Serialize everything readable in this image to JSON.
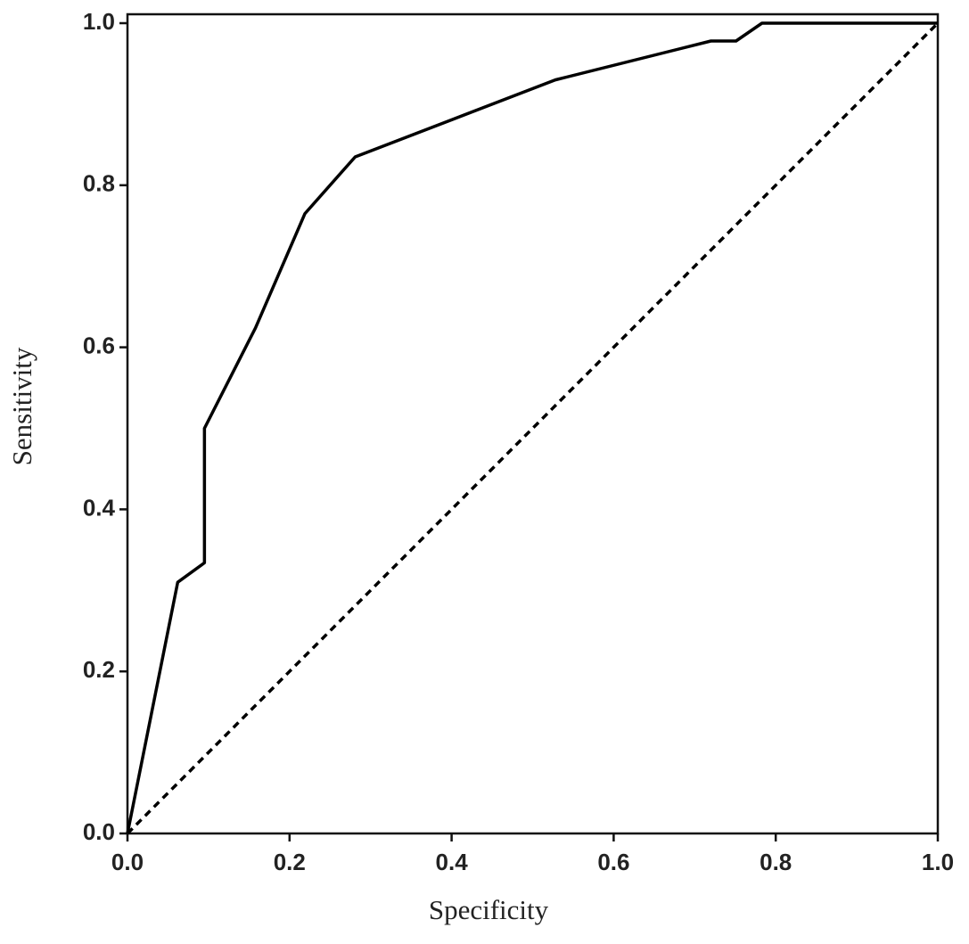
{
  "chart_data": {
    "type": "line",
    "xlabel": "Specificity",
    "ylabel": "Sensitivity",
    "xlim": [
      0,
      1
    ],
    "ylim": [
      0,
      1.011
    ],
    "xticks": [
      {
        "value": 0,
        "label": "0.0"
      },
      0.2,
      0.4,
      0.6,
      0.8,
      {
        "value": 1,
        "label": "1.0"
      }
    ],
    "yticks": [
      {
        "value": 0,
        "label": "0.0"
      },
      0.2,
      0.4,
      0.6,
      0.8,
      {
        "value": 1,
        "label": "1.0"
      }
    ],
    "grid": false,
    "series": [
      {
        "color": "#000000",
        "line_style": "solid",
        "x": [
          0,
          0.062,
          0.095,
          0.095,
          0.158,
          0.219,
          0.281,
          0.528,
          0.72,
          0.751,
          0.783,
          1.0
        ],
        "values": [
          0,
          0.31,
          0.334,
          0.5,
          0.624,
          0.765,
          0.835,
          0.93,
          0.978,
          0.978,
          1.0,
          1.0
        ]
      },
      {
        "color": "#000000",
        "line_style": "dashed",
        "x": [
          0,
          1
        ],
        "values": [
          0,
          1
        ]
      }
    ]
  }
}
